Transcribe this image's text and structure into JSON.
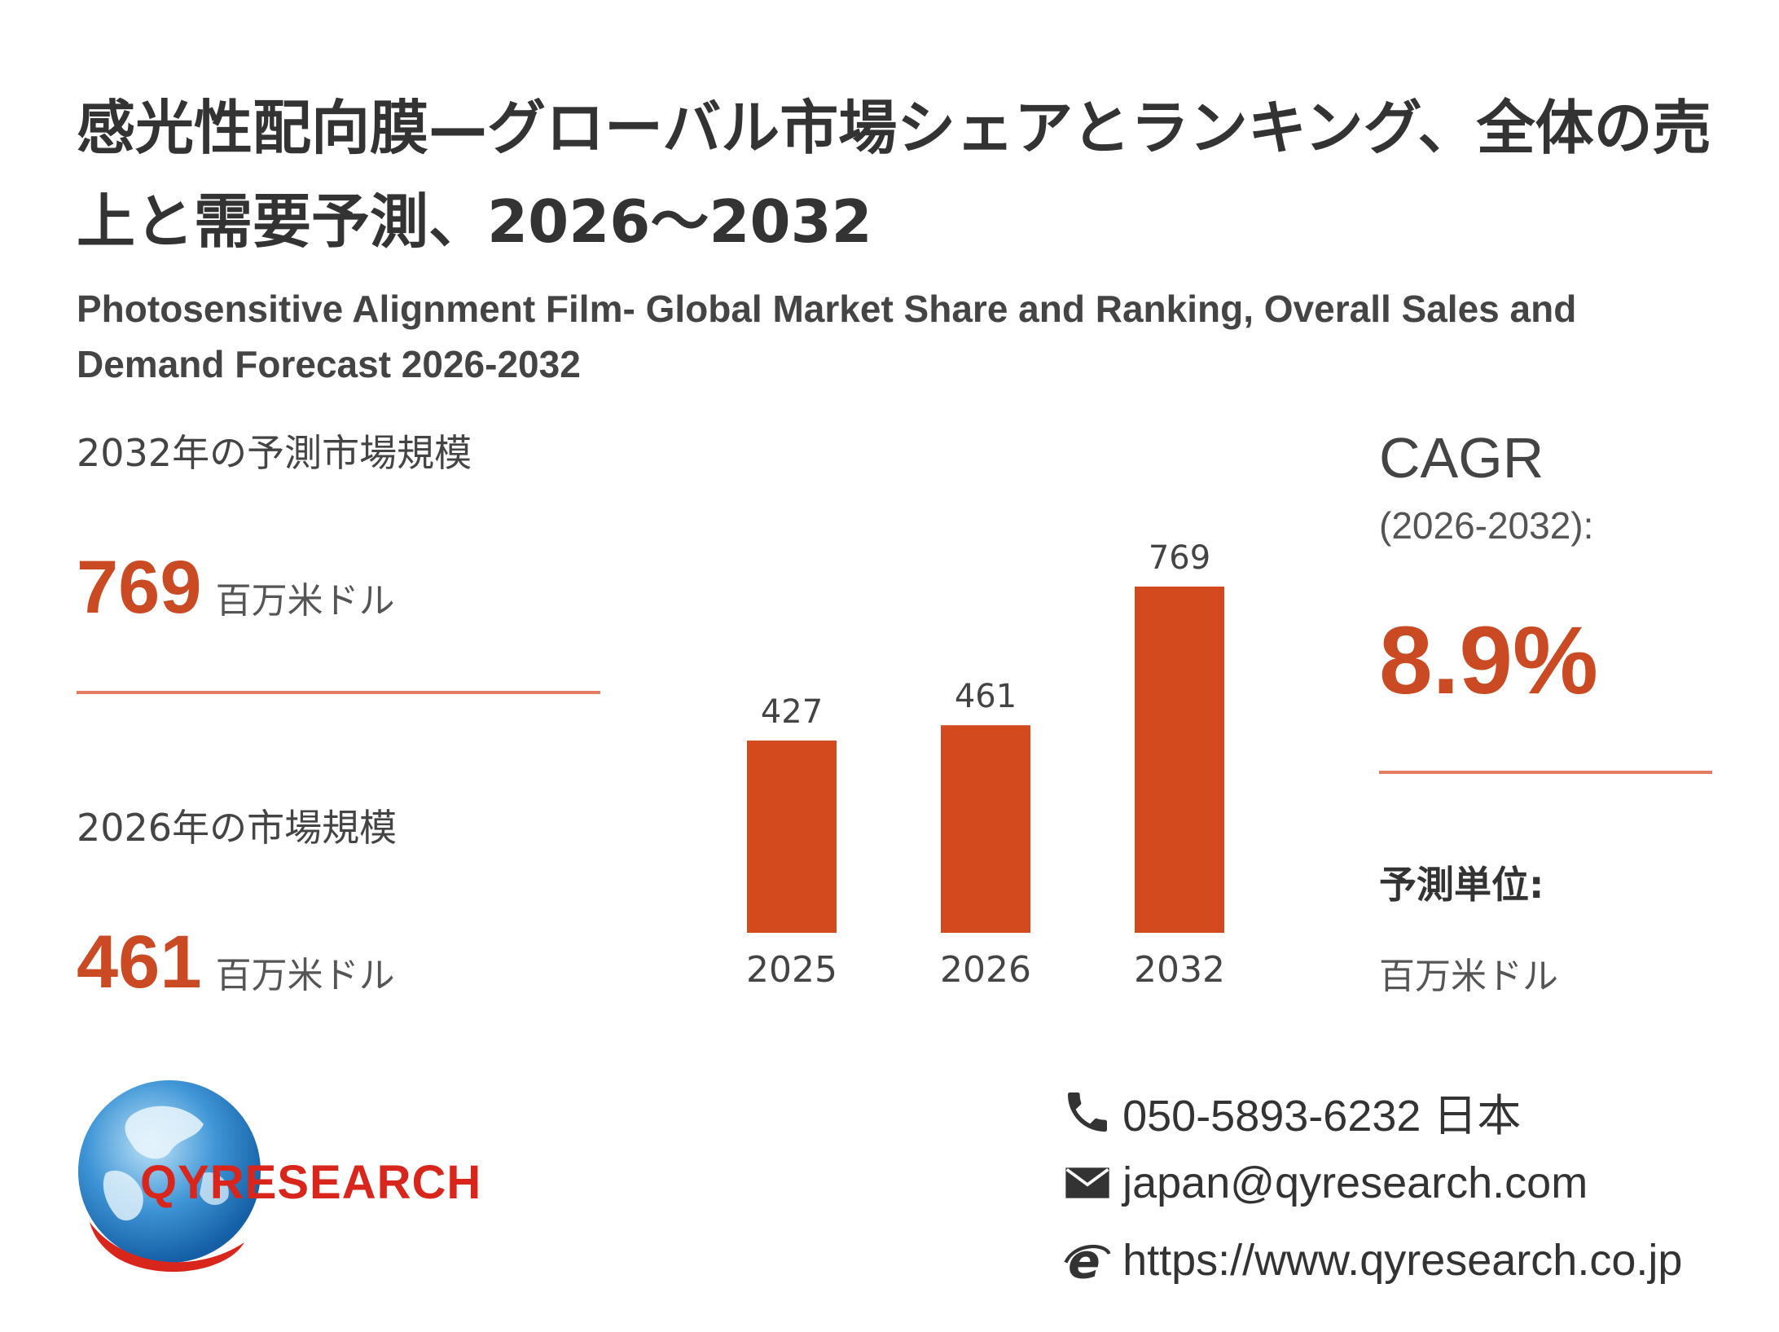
{
  "header": {
    "title_ja": "感光性配向膜—グローバル市場シェアとランキング、全体の売上と需要予測、2026～2032",
    "title_en": "Photosensitive Alignment Film- Global Market Share and Ranking, Overall Sales and Demand Forecast 2026-2032"
  },
  "left": {
    "forecast_label": "2032年の予測市場規模",
    "forecast_value": "769",
    "forecast_unit": "百万米ドル",
    "current_label": "2026年の市場規模",
    "current_value": "461",
    "current_unit": "百万米ドル"
  },
  "right": {
    "cagr_label": "CAGR",
    "cagr_period": "(2026-2032):",
    "cagr_value": "8.9%",
    "unit_heading": "予測単位:",
    "unit_value": "百万米ドル"
  },
  "chart_data": {
    "type": "bar",
    "categories": [
      "2025",
      "2026",
      "2032"
    ],
    "values": [
      427,
      461,
      769
    ],
    "data_labels": [
      "427",
      "461",
      "769"
    ],
    "ylim": [
      0,
      769
    ],
    "grid": false,
    "bar_color": "#d44a1f"
  },
  "footer": {
    "logo_text": "QYRESEARCH",
    "phone": "050-5893-6232 日本",
    "email": "japan@qyresearch.com",
    "website": "https://www.qyresearch.co.jp"
  },
  "colors": {
    "accent": "#c94a23",
    "bar": "#d44a1f",
    "rule": "#e27d62",
    "logo_blue": "#1e73be",
    "logo_red": "#d9261c"
  },
  "icons": [
    "phone-icon",
    "mail-icon",
    "web-icon",
    "globe-logo-icon"
  ]
}
